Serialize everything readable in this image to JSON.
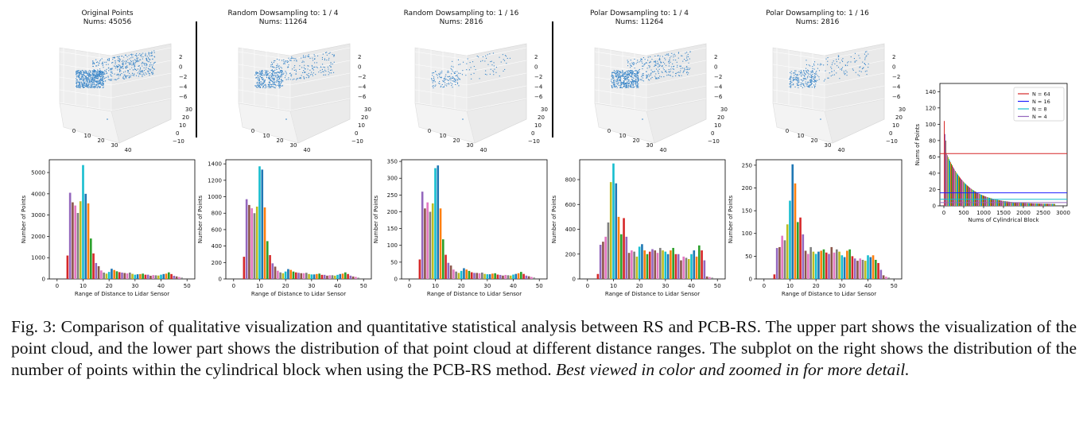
{
  "figure": {
    "caption_label": "Fig. 3:",
    "caption_text": "Comparison of qualitative visualization and quantitative statistical analysis between RS and PCB-RS. The upper part shows the visualization of the point cloud, and the lower part shows the distribution of that point cloud at different distance ranges. The subplot on the right shows the distribution of the number of points within the cylindrical block when using the PCB-RS method.",
    "caption_italic": "Best viewed in color and zoomed in for more detail."
  },
  "colors": [
    "#d62728",
    "#9467bd",
    "#8c564b",
    "#e377c2",
    "#7f7f7f",
    "#bcbd22",
    "#17becf",
    "#1f77b4",
    "#ff7f0e",
    "#2ca02c"
  ],
  "point_color": "#3a86c8",
  "scatter_panels": [
    {
      "title": "Original Points",
      "subtitle": "Nums: 45056",
      "density": 1.0
    },
    {
      "title": "Random Dowsampling to: 1 / 4",
      "subtitle": "Nums: 11264",
      "density": 0.55
    },
    {
      "title": "Random Dowsampling to: 1 / 16",
      "subtitle": "Nums: 2816",
      "density": 0.2
    },
    {
      "title": "Polar Dowsampling to: 1 / 4",
      "subtitle": "Nums: 11264",
      "density": 0.7
    },
    {
      "title": "Polar Dowsampling to: 1 / 16",
      "subtitle": "Nums: 2816",
      "density": 0.35
    }
  ],
  "scatter_axes": {
    "z_ticks": [
      "2",
      "0",
      "−2",
      "−4",
      "−6"
    ],
    "y_ticks": [
      "30",
      "20",
      "10",
      "0",
      "−10"
    ],
    "x_ticks": [
      "0",
      "10",
      "20",
      "30",
      "40"
    ]
  },
  "chart_data": [
    {
      "type": "bar",
      "title": "Original Points",
      "xlabel": "Range of Distance to Lidar Sensor",
      "ylabel": "Number of Points",
      "xlim": [
        -3,
        53
      ],
      "ylim": [
        0,
        5600
      ],
      "xticks": [
        0,
        10,
        20,
        30,
        40,
        50
      ],
      "yticks": [
        0,
        1000,
        2000,
        3000,
        4000,
        5000
      ],
      "x": [
        4,
        5,
        6,
        7,
        8,
        9,
        10,
        11,
        12,
        13,
        14,
        15,
        16,
        17,
        18,
        19,
        20,
        21,
        22,
        23,
        24,
        25,
        26,
        27,
        28,
        29,
        30,
        31,
        32,
        33,
        34,
        35,
        36,
        37,
        38,
        39,
        40,
        41,
        42,
        43,
        44,
        45,
        46,
        47,
        48
      ],
      "values": [
        1100,
        4050,
        3600,
        3450,
        3100,
        3650,
        5350,
        4000,
        3550,
        1900,
        1200,
        750,
        600,
        400,
        300,
        250,
        330,
        480,
        420,
        360,
        320,
        300,
        280,
        260,
        300,
        240,
        200,
        220,
        230,
        250,
        200,
        200,
        150,
        180,
        170,
        160,
        200,
        230,
        250,
        310,
        230,
        150,
        120,
        90,
        60
      ]
    },
    {
      "type": "bar",
      "title": "Random Dowsampling to: 1 / 4",
      "xlabel": "Range of Distance to Lidar Sensor",
      "ylabel": "Number of Points",
      "xlim": [
        -3,
        53
      ],
      "ylim": [
        0,
        1450
      ],
      "xticks": [
        0,
        10,
        20,
        30,
        40,
        50
      ],
      "yticks": [
        0,
        200,
        400,
        600,
        800,
        1000,
        1200,
        1400
      ],
      "x": [
        4,
        5,
        6,
        7,
        8,
        9,
        10,
        11,
        12,
        13,
        14,
        15,
        16,
        17,
        18,
        19,
        20,
        21,
        22,
        23,
        24,
        25,
        26,
        27,
        28,
        29,
        30,
        31,
        32,
        33,
        34,
        35,
        36,
        37,
        38,
        39,
        40,
        41,
        42,
        43,
        44,
        45,
        46,
        47,
        48
      ],
      "values": [
        270,
        970,
        900,
        860,
        800,
        880,
        1370,
        1330,
        870,
        460,
        290,
        190,
        150,
        100,
        80,
        70,
        90,
        120,
        110,
        90,
        80,
        75,
        70,
        70,
        75,
        60,
        55,
        55,
        60,
        65,
        50,
        50,
        40,
        45,
        45,
        40,
        50,
        60,
        65,
        80,
        60,
        40,
        30,
        25,
        15
      ]
    },
    {
      "type": "bar",
      "title": "Random Dowsampling to: 1 / 16",
      "xlabel": "Range of Distance to Lidar Sensor",
      "ylabel": "Number of Points",
      "xlim": [
        -3,
        53
      ],
      "ylim": [
        0,
        355
      ],
      "xticks": [
        0,
        10,
        20,
        30,
        40,
        50
      ],
      "yticks": [
        0,
        50,
        100,
        150,
        200,
        250,
        300,
        350
      ],
      "x": [
        4,
        5,
        6,
        7,
        8,
        9,
        10,
        11,
        12,
        13,
        14,
        15,
        16,
        17,
        18,
        19,
        20,
        21,
        22,
        23,
        24,
        25,
        26,
        27,
        28,
        29,
        30,
        31,
        32,
        33,
        34,
        35,
        36,
        37,
        38,
        39,
        40,
        41,
        42,
        43,
        44,
        45,
        46,
        47,
        48
      ],
      "values": [
        58,
        260,
        210,
        228,
        200,
        225,
        330,
        338,
        210,
        118,
        72,
        48,
        40,
        28,
        22,
        18,
        24,
        32,
        28,
        24,
        20,
        18,
        18,
        17,
        19,
        15,
        14,
        14,
        16,
        17,
        13,
        12,
        10,
        12,
        11,
        10,
        13,
        15,
        17,
        21,
        15,
        10,
        8,
        6,
        4
      ]
    },
    {
      "type": "bar",
      "title": "Polar Dowsampling to: 1 / 4",
      "xlabel": "Range of Distance to Lidar Sensor",
      "ylabel": "Number of Points",
      "xlim": [
        -3,
        53
      ],
      "ylim": [
        0,
        960
      ],
      "xticks": [
        0,
        10,
        20,
        30,
        40,
        50
      ],
      "yticks": [
        0,
        200,
        400,
        600,
        800
      ],
      "x": [
        4,
        5,
        6,
        7,
        8,
        9,
        10,
        11,
        12,
        13,
        14,
        15,
        16,
        17,
        18,
        19,
        20,
        21,
        22,
        23,
        24,
        25,
        26,
        27,
        28,
        29,
        30,
        31,
        32,
        33,
        34,
        35,
        36,
        37,
        38,
        39,
        40,
        41,
        42,
        43,
        44,
        45,
        46,
        47,
        48
      ],
      "values": [
        40,
        275,
        300,
        340,
        455,
        780,
        930,
        770,
        500,
        360,
        490,
        340,
        210,
        230,
        220,
        180,
        260,
        280,
        230,
        200,
        220,
        240,
        230,
        210,
        250,
        230,
        220,
        200,
        230,
        250,
        200,
        200,
        150,
        180,
        170,
        160,
        200,
        230,
        180,
        270,
        230,
        150,
        20,
        15,
        10
      ]
    },
    {
      "type": "bar",
      "title": "Polar Dowsampling to: 1 / 16",
      "xlabel": "Range of Distance to Lidar Sensor",
      "ylabel": "Number of Points",
      "xlim": [
        -3,
        53
      ],
      "ylim": [
        0,
        262
      ],
      "xticks": [
        0,
        10,
        20,
        30,
        40,
        50
      ],
      "yticks": [
        0,
        50,
        100,
        150,
        200,
        250
      ],
      "x": [
        4,
        5,
        6,
        7,
        8,
        9,
        10,
        11,
        12,
        13,
        14,
        15,
        16,
        17,
        18,
        19,
        20,
        21,
        22,
        23,
        24,
        25,
        26,
        27,
        28,
        29,
        30,
        31,
        32,
        33,
        34,
        35,
        36,
        37,
        38,
        39,
        40,
        41,
        42,
        43,
        44,
        45,
        46,
        47,
        48
      ],
      "values": [
        10,
        68,
        70,
        95,
        85,
        120,
        172,
        252,
        210,
        125,
        135,
        98,
        62,
        55,
        70,
        60,
        55,
        60,
        62,
        65,
        58,
        55,
        70,
        58,
        65,
        60,
        52,
        48,
        62,
        65,
        50,
        45,
        40,
        45,
        42,
        40,
        52,
        48,
        52,
        42,
        35,
        20,
        8,
        5,
        3
      ]
    },
    {
      "type": "bar",
      "title": "",
      "xlabel": "Nums of Cylindrical Block",
      "ylabel": "Nums of Points",
      "xlim": [
        -100,
        3100
      ],
      "ylim": [
        0,
        150
      ],
      "xticks": [
        0,
        500,
        1000,
        1500,
        2000,
        2500,
        3000
      ],
      "yticks": [
        0,
        20,
        40,
        60,
        80,
        100,
        120,
        140
      ],
      "series": [
        {
          "name": "N = 64",
          "value": 64,
          "color": "#d62728"
        },
        {
          "name": "N = 16",
          "value": 16,
          "color": "#1f1fff"
        },
        {
          "name": "N = 8",
          "value": 8,
          "color": "#17becf"
        },
        {
          "name": "N = 4",
          "value": 4,
          "color": "#9467bd"
        }
      ],
      "decay": {
        "peak": 104,
        "mid": 70,
        "tail_end": 2800,
        "description": "sorted descending number of points per cylindrical block"
      }
    }
  ]
}
